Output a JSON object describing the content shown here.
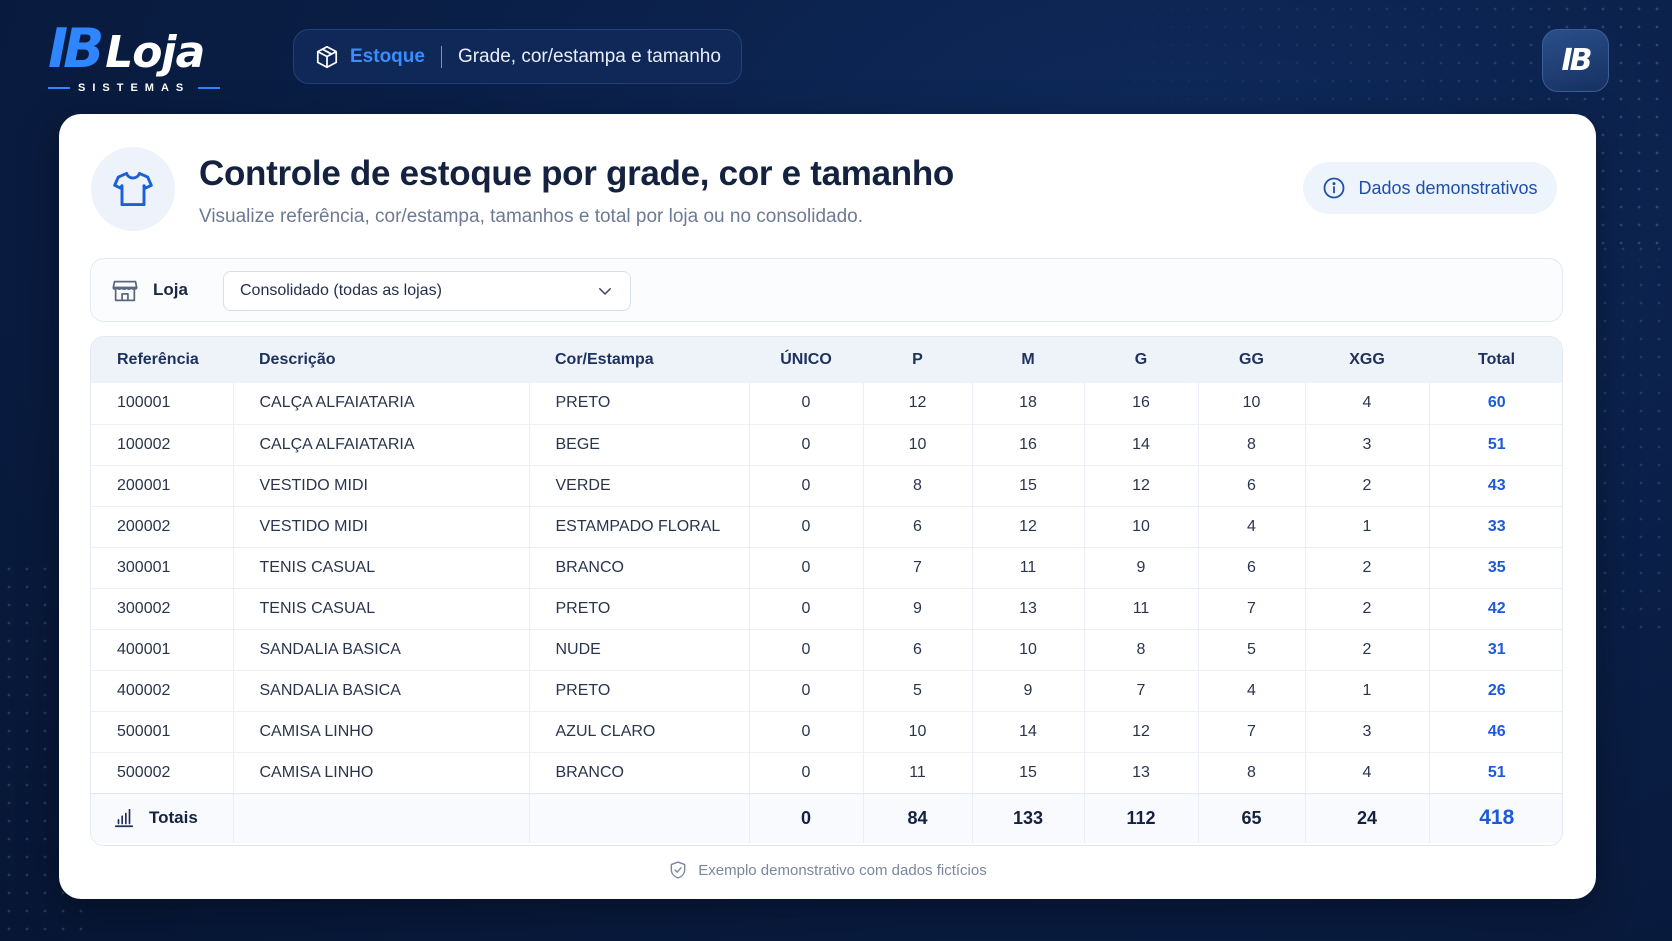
{
  "header": {
    "logo_ib": "IB",
    "logo_loja": "Loja",
    "logo_sub": "SISTEMAS",
    "breadcrumb_section": "Estoque",
    "breadcrumb_page": "Grade, cor/estampa e tamanho",
    "badge": "IB"
  },
  "page": {
    "title": "Controle de estoque por grade, cor e tamanho",
    "subtitle": "Visualize referência, cor/estampa, tamanhos e total por loja ou no consolidado.",
    "demo_pill": "Dados demonstrativos"
  },
  "filter": {
    "label": "Loja",
    "selected": "Consolidado (todas as lojas)"
  },
  "table": {
    "headers": [
      "Referência",
      "Descrição",
      "Cor/Estampa",
      "ÚNICO",
      "P",
      "M",
      "G",
      "GG",
      "XGG",
      "Total"
    ],
    "rows": [
      [
        "100001",
        "CALÇA ALFAIATARIA",
        "PRETO",
        "0",
        "12",
        "18",
        "16",
        "10",
        "4",
        "60"
      ],
      [
        "100002",
        "CALÇA ALFAIATARIA",
        "BEGE",
        "0",
        "10",
        "16",
        "14",
        "8",
        "3",
        "51"
      ],
      [
        "200001",
        "VESTIDO MIDI",
        "VERDE",
        "0",
        "8",
        "15",
        "12",
        "6",
        "2",
        "43"
      ],
      [
        "200002",
        "VESTIDO MIDI",
        "ESTAMPADO FLORAL",
        "0",
        "6",
        "12",
        "10",
        "4",
        "1",
        "33"
      ],
      [
        "300001",
        "TENIS CASUAL",
        "BRANCO",
        "0",
        "7",
        "11",
        "9",
        "6",
        "2",
        "35"
      ],
      [
        "300002",
        "TENIS CASUAL",
        "PRETO",
        "0",
        "9",
        "13",
        "11",
        "7",
        "2",
        "42"
      ],
      [
        "400001",
        "SANDALIA BASICA",
        "NUDE",
        "0",
        "6",
        "10",
        "8",
        "5",
        "2",
        "31"
      ],
      [
        "400002",
        "SANDALIA BASICA",
        "PRETO",
        "0",
        "5",
        "9",
        "7",
        "4",
        "1",
        "26"
      ],
      [
        "500001",
        "CAMISA LINHO",
        "AZUL CLARO",
        "0",
        "10",
        "14",
        "12",
        "7",
        "3",
        "46"
      ],
      [
        "500002",
        "CAMISA LINHO",
        "BRANCO",
        "0",
        "11",
        "15",
        "13",
        "8",
        "4",
        "51"
      ]
    ],
    "totals": {
      "label": "Totais",
      "values": [
        "0",
        "84",
        "133",
        "112",
        "65",
        "24",
        "418"
      ]
    }
  },
  "footnote": "Exemplo demonstrativo com dados fictícios",
  "colors": {
    "accent": "#2f86ff",
    "total_text": "#1c5ad6",
    "background": "#0a1f47"
  },
  "icons": {
    "breadcrumb": "box-icon",
    "page": "shirt-icon",
    "demo": "info-icon",
    "filter": "store-icon",
    "select": "chevron-down-icon",
    "totals": "bar-chart-icon",
    "footnote": "shield-check-icon"
  }
}
